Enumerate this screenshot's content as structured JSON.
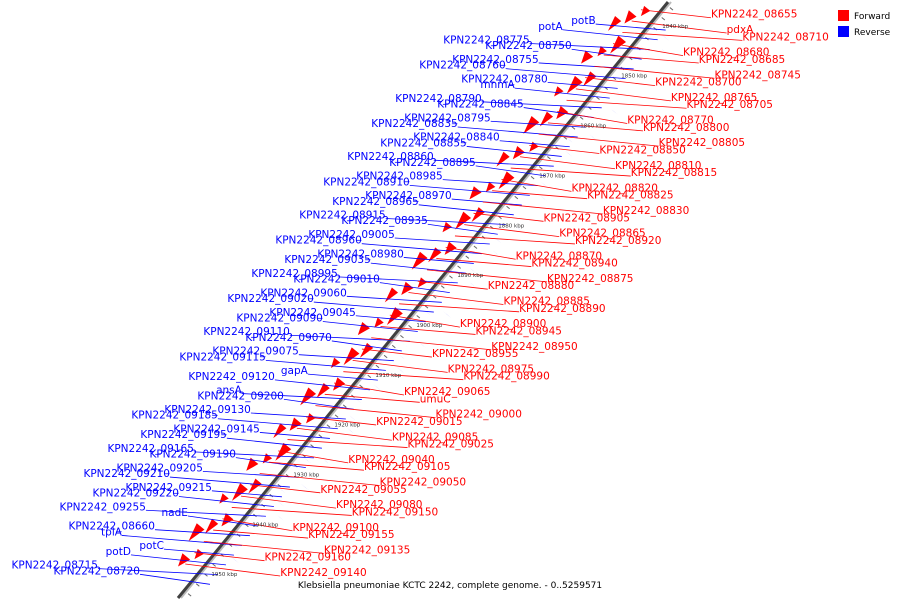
{
  "caption": "Klebsiella pneumoniae KCTC 2242, complete genome. - 0..5259571",
  "legend": {
    "forward": "Forward",
    "reverse": "Reverse"
  },
  "colors": {
    "forward": "#ff0000",
    "reverse": "#0000ff",
    "axis": "#404040"
  },
  "ticks": [
    "1840 kbp",
    "1850 kbp",
    "1860 kbp",
    "1870 kbp",
    "1880 kbp",
    "1890 kbp",
    "1900 kbp",
    "1910 kbp",
    "1920 kbp",
    "1930 kbp",
    "1940 kbp",
    "1950 kbp"
  ],
  "reverse_genes": [
    "potB",
    "potA",
    "KPN2242_08775",
    "KPN2242_08750",
    "KPN2242_08755",
    "KPN2242_08760",
    "KPN2242_08780",
    "mnmA",
    "KPN2242_08790",
    "KPN2242_08845",
    "KPN2242_08795",
    "KPN2242_08835",
    "KPN2242_08840",
    "KPN2242_08855",
    "KPN2242_08860",
    "KPN2242_08895",
    "KPN2242_08985",
    "KPN2242_08910",
    "KPN2242_08970",
    "KPN2242_08965",
    "KPN2242_08915",
    "KPN2242_08935",
    "KPN2242_09005",
    "KPN2242_08960",
    "KPN2242_08980",
    "KPN2242_09035",
    "KPN2242_08995",
    "KPN2242_09010",
    "KPN2242_09060",
    "KPN2242_09020",
    "KPN2242_09045",
    "KPN2242_09090",
    "KPN2242_09110",
    "KPN2242_09070",
    "KPN2242_09075",
    "KPN2242_09115",
    "gapA",
    "KPN2242_09120",
    "ansA",
    "KPN2242_09200",
    "KPN2242_09130",
    "KPN2242_09185",
    "KPN2242_09145",
    "KPN2242_09195",
    "KPN2242_09165",
    "KPN2242_09190",
    "KPN2242_09205",
    "KPN2242_09210",
    "KPN2242_09215",
    "KPN2242_09220",
    "KPN2242_09255",
    "nadE",
    "KPN2242_08660",
    "tpiA",
    "potC",
    "potD",
    "KPN2242_08715",
    "KPN2242_08720"
  ],
  "forward_genes": [
    "KPN2242_08655",
    "pdxA",
    "KPN2242_08710",
    "KPN2242_08680",
    "KPN2242_08685",
    "KPN2242_08745",
    "KPN2242_08700",
    "KPN2242_08765",
    "KPN2242_08705",
    "KPN2242_08770",
    "KPN2242_08800",
    "KPN2242_08805",
    "KPN2242_08850",
    "KPN2242_08810",
    "KPN2242_08815",
    "KPN2242_08820",
    "KPN2242_08825",
    "KPN2242_08830",
    "KPN2242_08905",
    "KPN2242_08865",
    "KPN2242_08920",
    "KPN2242_08870",
    "KPN2242_08940",
    "KPN2242_08875",
    "KPN2242_08880",
    "KPN2242_08885",
    "KPN2242_08890",
    "KPN2242_08900",
    "KPN2242_08945",
    "KPN2242_08950",
    "KPN2242_08955",
    "KPN2242_08975",
    "KPN2242_08990",
    "KPN2242_09065",
    "umuC",
    "KPN2242_09000",
    "KPN2242_09015",
    "KPN2242_09085",
    "KPN2242_09025",
    "KPN2242_09040",
    "KPN2242_09105",
    "KPN2242_09050",
    "KPN2242_09055",
    "KPN2242_09080",
    "KPN2242_09150",
    "KPN2242_09100",
    "KPN2242_09155",
    "KPN2242_09135",
    "KPN2242_09160",
    "KPN2242_09140"
  ]
}
